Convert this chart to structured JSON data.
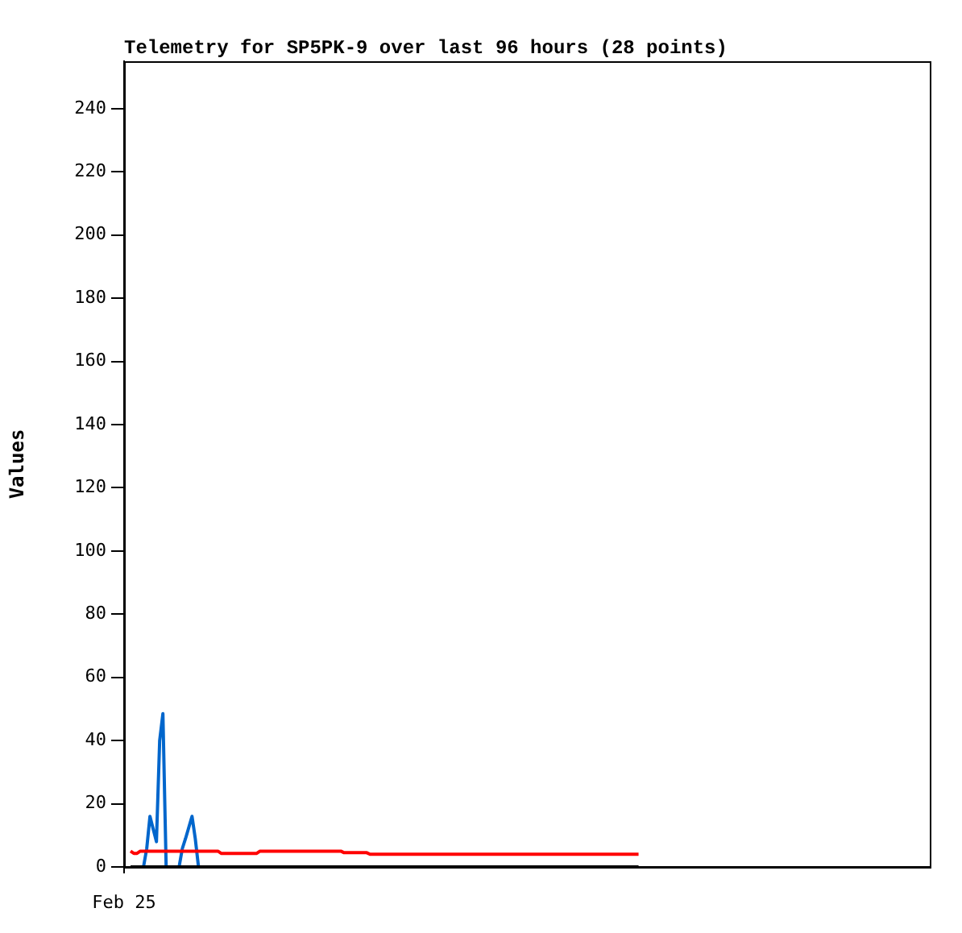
{
  "chart_data": {
    "type": "line",
    "title": "Telemetry for SP5PK-9 over last 96 hours (28 points)",
    "ylabel": "Values",
    "categories": [
      "Feb 25",
      null,
      null,
      null,
      null,
      null,
      null,
      null,
      null,
      null,
      null,
      null,
      null,
      null,
      null,
      null,
      null,
      null,
      null,
      null,
      null,
      null,
      null,
      null,
      null,
      null,
      null,
      null,
      null,
      null,
      null,
      null,
      null,
      null,
      null,
      null,
      null,
      null,
      null,
      null,
      null,
      null,
      null,
      null,
      null,
      null,
      null,
      null,
      null,
      null,
      null,
      null,
      null,
      null,
      null,
      null,
      null,
      null,
      null,
      null,
      null,
      null,
      null,
      null,
      null,
      null,
      null,
      null,
      null,
      null,
      null,
      null,
      null,
      null,
      null,
      null,
      null,
      null,
      null,
      null,
      null,
      null,
      null,
      null,
      null,
      null,
      null,
      null,
      null,
      null,
      null,
      null,
      null,
      null,
      null,
      null,
      null,
      null,
      null,
      null,
      null,
      null,
      null,
      null,
      null,
      null,
      null,
      null,
      null,
      null,
      null,
      null,
      null,
      null,
      null,
      null,
      null,
      null,
      null,
      null,
      null,
      null,
      null,
      null,
      null,
      null,
      null,
      null,
      null,
      null,
      null,
      null,
      null,
      null,
      null,
      null,
      null,
      null,
      null,
      null,
      null,
      null,
      null,
      null,
      null,
      null,
      null,
      null,
      null,
      null,
      null,
      null,
      null,
      null,
      null,
      null,
      null,
      null,
      null,
      null,
      null,
      null,
      null,
      null,
      null,
      null,
      null,
      null,
      null,
      null,
      null,
      null,
      null,
      null,
      null,
      null,
      null,
      null,
      null,
      null,
      null,
      null,
      null,
      null,
      null,
      null,
      null,
      null,
      null,
      null,
      null,
      null,
      null,
      null,
      null,
      null,
      null,
      null,
      null,
      null,
      null,
      null,
      null,
      null,
      null,
      null,
      null,
      null,
      null,
      null,
      null,
      null,
      null,
      null,
      null,
      null,
      null,
      null,
      null,
      null,
      null,
      null,
      null,
      null,
      null,
      null,
      null,
      null,
      null,
      null,
      null,
      null,
      null,
      null,
      null,
      null,
      null,
      null,
      null,
      null,
      null,
      null,
      null,
      null,
      null,
      null,
      null,
      null,
      null,
      null
    ],
    "ylim": [
      0,
      255
    ],
    "yticks": [
      0,
      20,
      40,
      60,
      80,
      100,
      120,
      140,
      160,
      180,
      200,
      220,
      240
    ],
    "grid": false,
    "legend": false,
    "marker": "none",
    "series": [
      {
        "color": "#000000",
        "values": [
          null,
          null,
          0,
          0,
          0,
          0,
          0,
          0,
          0,
          0,
          0,
          0,
          0,
          0,
          0,
          0,
          0,
          0,
          0,
          0,
          0,
          0,
          0,
          0,
          0,
          0,
          0,
          0,
          0,
          0,
          0,
          0,
          0,
          0,
          0,
          0,
          0,
          0,
          0,
          0,
          0,
          0,
          0,
          0,
          0,
          0,
          0,
          0,
          0,
          0,
          0,
          0,
          0,
          0,
          0,
          0,
          0,
          0,
          0,
          0,
          0,
          0,
          0,
          0,
          0,
          0,
          0,
          0,
          0,
          0,
          0,
          0,
          0,
          0,
          0,
          0,
          0,
          0,
          0,
          0,
          0,
          0,
          0,
          0,
          0,
          0,
          0,
          0,
          0,
          0,
          0,
          0,
          0,
          0,
          0,
          0,
          0,
          0,
          0,
          0,
          0,
          0,
          0,
          0,
          0,
          0,
          0,
          0,
          0,
          0,
          0,
          0,
          0,
          0,
          0,
          0,
          0,
          0,
          0,
          0,
          0,
          0,
          0,
          0,
          0,
          0,
          0,
          0,
          0,
          0,
          0,
          0,
          0,
          0,
          0,
          0,
          0,
          0,
          0,
          0,
          0,
          0,
          0,
          0,
          0,
          0,
          0,
          0,
          0,
          0,
          0,
          0,
          0,
          0,
          0,
          0,
          0,
          0,
          0,
          0,
          null,
          null,
          null,
          null,
          null,
          null,
          null,
          null,
          null,
          null,
          null,
          null,
          null,
          null,
          null,
          null,
          null,
          null,
          null,
          null,
          null,
          null,
          null,
          null,
          null,
          null,
          null,
          null,
          null,
          null,
          null,
          null,
          null,
          null,
          null,
          null,
          null,
          null,
          null,
          null,
          null,
          null,
          null,
          null,
          null,
          null,
          null,
          null,
          null,
          null,
          null,
          null,
          null,
          null,
          null,
          null,
          null,
          null,
          null,
          null,
          null,
          null,
          null,
          null,
          null,
          null,
          null,
          null,
          null,
          null,
          null,
          null,
          null,
          null,
          null,
          null,
          null,
          null,
          null,
          null,
          null,
          null,
          null,
          null,
          null,
          null,
          null,
          null,
          null,
          null
        ]
      },
      {
        "color": "#ff0000",
        "values": [
          null,
          null,
          5,
          4.3,
          4.3,
          5,
          5,
          5,
          5,
          5,
          5,
          5,
          5,
          5,
          5,
          5,
          5,
          5,
          5,
          5,
          5,
          5,
          5,
          5,
          5,
          5,
          5,
          5,
          5,
          5,
          4.3,
          4.3,
          4.3,
          4.3,
          4.3,
          4.3,
          4.3,
          4.3,
          4.3,
          4.3,
          4.3,
          4.3,
          5,
          5,
          5,
          5,
          5,
          5,
          5,
          5,
          5,
          5,
          5,
          5,
          5,
          5,
          5,
          5,
          5,
          5,
          5,
          5,
          5,
          5,
          5,
          5,
          5,
          5,
          4.5,
          4.5,
          4.5,
          4.5,
          4.5,
          4.5,
          4.5,
          4.5,
          4,
          4,
          4,
          4,
          4,
          4,
          4,
          4,
          4,
          4,
          4,
          4,
          4,
          4,
          4,
          4,
          4,
          4,
          4,
          4,
          4,
          4,
          4,
          4,
          4,
          4,
          4,
          4,
          4,
          4,
          4,
          4,
          4,
          4,
          4,
          4,
          4,
          4,
          4,
          4,
          4,
          4,
          4,
          4,
          4,
          4,
          4,
          4,
          4,
          4,
          4,
          4,
          4,
          4,
          4,
          4,
          4,
          4,
          4,
          4,
          4,
          4,
          4,
          4,
          4,
          4,
          4,
          4,
          4,
          4,
          4,
          4,
          4,
          4,
          4,
          4,
          4,
          4,
          4,
          4,
          4,
          4,
          4,
          4,
          null,
          null,
          null,
          null,
          null,
          null,
          null,
          null,
          null,
          null,
          null,
          null,
          null,
          null,
          null,
          null,
          null,
          null,
          null,
          null,
          null,
          null,
          null,
          null,
          null,
          null,
          null,
          null,
          null,
          null,
          null,
          null,
          null,
          null,
          null,
          null,
          null,
          null,
          null,
          null,
          null,
          null,
          null,
          null,
          null,
          null,
          null,
          null,
          null,
          null,
          null,
          null,
          null,
          null,
          null,
          null,
          null,
          null,
          null,
          null,
          null,
          null,
          null,
          null,
          null,
          null,
          null,
          null,
          null,
          null,
          null,
          null,
          null,
          null,
          null,
          null,
          null,
          null,
          null,
          null,
          null,
          null,
          null,
          null,
          null,
          null,
          null,
          null,
          null,
          null
        ]
      },
      {
        "color": "#0066cc",
        "values": [
          null,
          null,
          null,
          null,
          null,
          null,
          0,
          5.8,
          16,
          12,
          8,
          40,
          48.5,
          0,
          0,
          0,
          0,
          0,
          5.8,
          9,
          12.5,
          16,
          9,
          0,
          null,
          null,
          null,
          null,
          null,
          null,
          null,
          null,
          null,
          null,
          null,
          null,
          null,
          null,
          null,
          null,
          null,
          null,
          null,
          null,
          null,
          null,
          null,
          null,
          null,
          null,
          null,
          null,
          null,
          null,
          null,
          null,
          null,
          null,
          null,
          null,
          null,
          null,
          null,
          null,
          null,
          null,
          null,
          null,
          null,
          null,
          null,
          null,
          null,
          null,
          null,
          null,
          null,
          null,
          null,
          null,
          null,
          null,
          null,
          null,
          null,
          null,
          null,
          null,
          null,
          null,
          null,
          null,
          null,
          null,
          null,
          null,
          null,
          null,
          null,
          null,
          null,
          null,
          null,
          null,
          null,
          null,
          null,
          null,
          null,
          null,
          null,
          null,
          null,
          null,
          null,
          null,
          null,
          null,
          null,
          null,
          null,
          null,
          null,
          null,
          null,
          null,
          null,
          null,
          null,
          null,
          null,
          null,
          null,
          null,
          null,
          null,
          null,
          null,
          null,
          null,
          null,
          null,
          null,
          null,
          null,
          null,
          null,
          null,
          null,
          null,
          null,
          null,
          null,
          null,
          null,
          null,
          null,
          null,
          null,
          null,
          null,
          null,
          null,
          null,
          null,
          null,
          null,
          null,
          null,
          null,
          null,
          null,
          null,
          null,
          null,
          null,
          null,
          null,
          null,
          null,
          null,
          null,
          null,
          null,
          null,
          null,
          null,
          null,
          null,
          null,
          null,
          null,
          null,
          null,
          null,
          null,
          null,
          null,
          null,
          null,
          null,
          null,
          null,
          null,
          null,
          null,
          null,
          null,
          null,
          null,
          null,
          null,
          null,
          null,
          null,
          null,
          null,
          null,
          null,
          null,
          null,
          null,
          null,
          null,
          null,
          null,
          null,
          null,
          null,
          null,
          null,
          null,
          null,
          null,
          null,
          null,
          null,
          null,
          null,
          null,
          null,
          null,
          null,
          null,
          null,
          null,
          null,
          null,
          null,
          null
        ]
      }
    ]
  }
}
